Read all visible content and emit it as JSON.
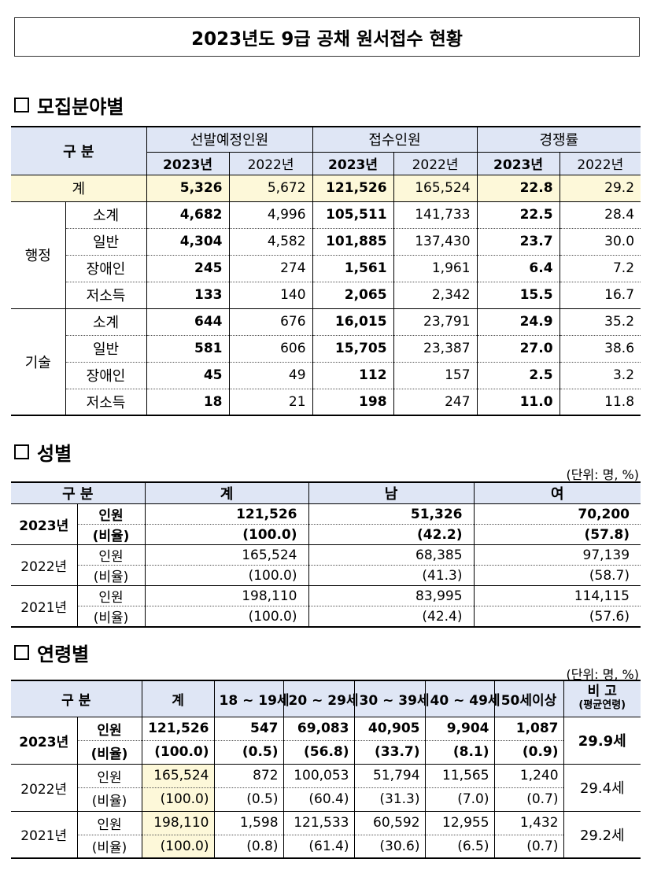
{
  "title": "2023년도 9급 공채 원서접수 현황",
  "section1": {
    "heading": "모집분야별",
    "header": {
      "category": "구 분",
      "groups": [
        "선발예정인원",
        "접수인원",
        "경쟁률"
      ],
      "years": [
        "2023년",
        "2022년"
      ]
    },
    "total": {
      "label": "계",
      "values": [
        "5,326",
        "5,672",
        "121,526",
        "165,524",
        "22.8",
        "29.2"
      ]
    },
    "groups": [
      {
        "name": "행정",
        "rows": [
          {
            "label": "소계",
            "values": [
              "4,682",
              "4,996",
              "105,511",
              "141,733",
              "22.5",
              "28.4"
            ]
          },
          {
            "label": "일반",
            "values": [
              "4,304",
              "4,582",
              "101,885",
              "137,430",
              "23.7",
              "30.0"
            ]
          },
          {
            "label": "장애인",
            "values": [
              "245",
              "274",
              "1,561",
              "1,961",
              "6.4",
              "7.2"
            ]
          },
          {
            "label": "저소득",
            "values": [
              "133",
              "140",
              "2,065",
              "2,342",
              "15.5",
              "16.7"
            ]
          }
        ]
      },
      {
        "name": "기술",
        "rows": [
          {
            "label": "소계",
            "values": [
              "644",
              "676",
              "16,015",
              "23,791",
              "24.9",
              "35.2"
            ]
          },
          {
            "label": "일반",
            "values": [
              "581",
              "606",
              "15,705",
              "23,387",
              "27.0",
              "38.6"
            ]
          },
          {
            "label": "장애인",
            "values": [
              "45",
              "49",
              "112",
              "157",
              "2.5",
              "3.2"
            ]
          },
          {
            "label": "저소득",
            "values": [
              "18",
              "21",
              "198",
              "247",
              "11.0",
              "11.8"
            ]
          }
        ]
      }
    ]
  },
  "section2": {
    "heading": "성별",
    "unit": "(단위: 명, %)",
    "header": [
      "구 분",
      "계",
      "남",
      "여"
    ],
    "years": [
      {
        "year": "2023년",
        "rows": [
          {
            "label": "인원",
            "values": [
              "121,526",
              "51,326",
              "70,200"
            ]
          },
          {
            "label": "(비율)",
            "values": [
              "(100.0)",
              "(42.2)",
              "(57.8)"
            ]
          }
        ]
      },
      {
        "year": "2022년",
        "rows": [
          {
            "label": "인원",
            "values": [
              "165,524",
              "68,385",
              "97,139"
            ]
          },
          {
            "label": "(비율)",
            "values": [
              "(100.0)",
              "(41.3)",
              "(58.7)"
            ]
          }
        ]
      },
      {
        "year": "2021년",
        "rows": [
          {
            "label": "인원",
            "values": [
              "198,110",
              "83,995",
              "114,115"
            ]
          },
          {
            "label": "(비율)",
            "values": [
              "(100.0)",
              "(42.4)",
              "(57.6)"
            ]
          }
        ]
      }
    ]
  },
  "section3": {
    "heading": "연령별",
    "unit": "(단위: 명, %)",
    "header": {
      "category": "구 분",
      "cols": [
        "계",
        "18 ~ 19세",
        "20 ~ 29세",
        "30 ~ 39세",
        "40 ~ 49세",
        "50세이상"
      ],
      "note": "비 고",
      "note_sub": "(평균연령)"
    },
    "years": [
      {
        "year": "2023년",
        "avg": "29.9세",
        "rows": [
          {
            "label": "인원",
            "values": [
              "121,526",
              "547",
              "69,083",
              "40,905",
              "9,904",
              "1,087"
            ]
          },
          {
            "label": "(비율)",
            "values": [
              "(100.0)",
              "(0.5)",
              "(56.8)",
              "(33.7)",
              "(8.1)",
              "(0.9)"
            ]
          }
        ]
      },
      {
        "year": "2022년",
        "avg": "29.4세",
        "rows": [
          {
            "label": "인원",
            "values": [
              "165,524",
              "872",
              "100,053",
              "51,794",
              "11,565",
              "1,240"
            ]
          },
          {
            "label": "(비율)",
            "values": [
              "(100.0)",
              "(0.5)",
              "(60.4)",
              "(31.3)",
              "(7.0)",
              "(0.7)"
            ]
          }
        ]
      },
      {
        "year": "2021년",
        "avg": "29.2세",
        "rows": [
          {
            "label": "인원",
            "values": [
              "198,110",
              "1,598",
              "121,533",
              "60,592",
              "12,955",
              "1,432"
            ]
          },
          {
            "label": "(비율)",
            "values": [
              "(100.0)",
              "(0.8)",
              "(61.4)",
              "(30.6)",
              "(6.5)",
              "(0.7)"
            ]
          }
        ]
      }
    ]
  }
}
